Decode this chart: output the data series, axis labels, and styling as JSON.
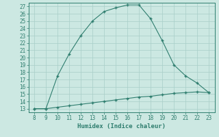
{
  "x": [
    8,
    9,
    10,
    11,
    12,
    13,
    14,
    15,
    16,
    17,
    18,
    19,
    20,
    21,
    22,
    23
  ],
  "y_curve": [
    13.0,
    13.0,
    17.5,
    20.5,
    23.0,
    25.0,
    26.3,
    26.8,
    27.2,
    27.2,
    25.3,
    22.3,
    19.0,
    17.5,
    16.5,
    15.2
  ],
  "y_flat": [
    13.0,
    13.0,
    13.2,
    13.4,
    13.6,
    13.8,
    14.0,
    14.2,
    14.4,
    14.6,
    14.7,
    14.9,
    15.1,
    15.2,
    15.3,
    15.2
  ],
  "line_color": "#2e7d6e",
  "bg_color": "#cce8e2",
  "grid_color": "#a8cec8",
  "xlabel": "Humidex (Indice chaleur)",
  "xlim": [
    7.5,
    23.5
  ],
  "ylim": [
    12.5,
    27.5
  ],
  "xticks": [
    8,
    9,
    10,
    11,
    12,
    13,
    14,
    15,
    16,
    17,
    18,
    19,
    20,
    21,
    22,
    23
  ],
  "yticks": [
    13,
    14,
    15,
    16,
    17,
    18,
    19,
    20,
    21,
    22,
    23,
    24,
    25,
    26,
    27
  ],
  "marker": "+"
}
